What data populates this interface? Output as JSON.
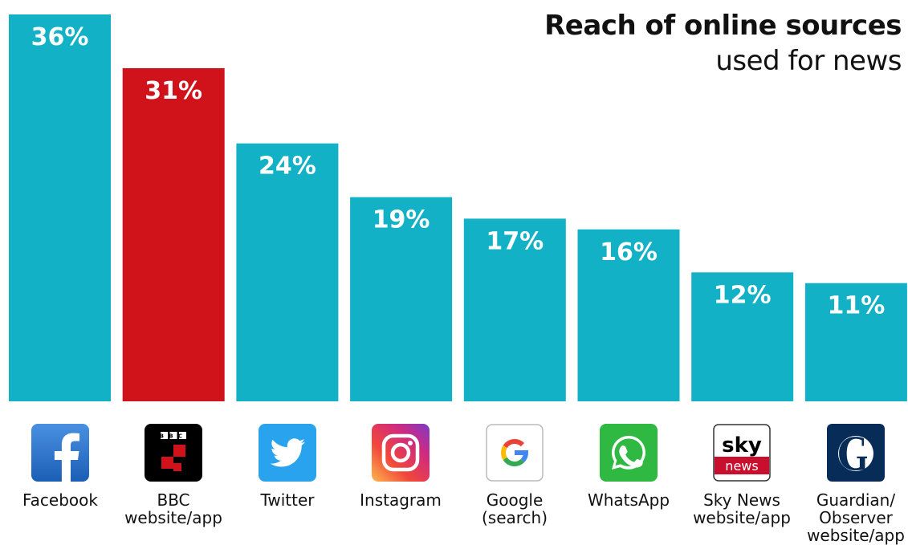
{
  "title_line1": "Reach of online sources",
  "title_line2": "used for news",
  "colors": {
    "bar": "#13b1c6",
    "highlight": "#d0121b"
  },
  "chart_data": {
    "type": "bar",
    "title": "Reach of online sources used for news",
    "categories": [
      "Facebook",
      "BBC\nwebsite/app",
      "Twitter",
      "Instagram",
      "Google\n(search)",
      "WhatsApp",
      "Sky News\nwebsite/app",
      "Guardian/\nObserver\nwebsite/app"
    ],
    "values": [
      36,
      31,
      24,
      19,
      17,
      16,
      12,
      11
    ],
    "value_labels": [
      "36%",
      "31%",
      "24%",
      "19%",
      "17%",
      "16%",
      "12%",
      "11%"
    ],
    "highlight_index": 1,
    "ylim": [
      0,
      36
    ],
    "grid": false,
    "legend": "none"
  },
  "logos": [
    "facebook-icon",
    "bbc-icon",
    "twitter-icon",
    "instagram-icon",
    "google-icon",
    "whatsapp-icon",
    "sky-news-icon",
    "guardian-icon"
  ],
  "sky_logo_text": {
    "top": "sky",
    "bottom": "news"
  },
  "bbc_logo_text": "BBC"
}
